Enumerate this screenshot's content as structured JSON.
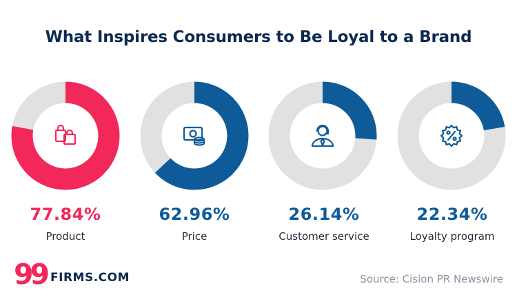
{
  "title": "What Inspires Consumers to Be Loyal to a Brand",
  "source": "Source: Cision PR Newswire",
  "logo": {
    "mark": "99",
    "text": "FIRMS.COM"
  },
  "colors": {
    "pink": "#f2285a",
    "blue": "#0f5b99",
    "track": "#e1e1e1",
    "navy": "#0d2a4f"
  },
  "chart_data": {
    "type": "pie",
    "variant": "donut",
    "title": "What Inspires Consumers to Be Loyal to a Brand",
    "items": [
      {
        "label": "Product",
        "value": 77.84,
        "value_text": "77.84%",
        "color": "#f2285a",
        "icon": "shopping-bags-icon"
      },
      {
        "label": "Price",
        "value": 62.96,
        "value_text": "62.96%",
        "color": "#0f5b99",
        "icon": "money-coins-icon"
      },
      {
        "label": "Customer service",
        "value": 26.14,
        "value_text": "26.14%",
        "color": "#0f5b99",
        "icon": "support-agent-icon"
      },
      {
        "label": "Loyalty program",
        "value": 22.34,
        "value_text": "22.34%",
        "color": "#0f5b99",
        "icon": "discount-badge-icon"
      }
    ]
  }
}
